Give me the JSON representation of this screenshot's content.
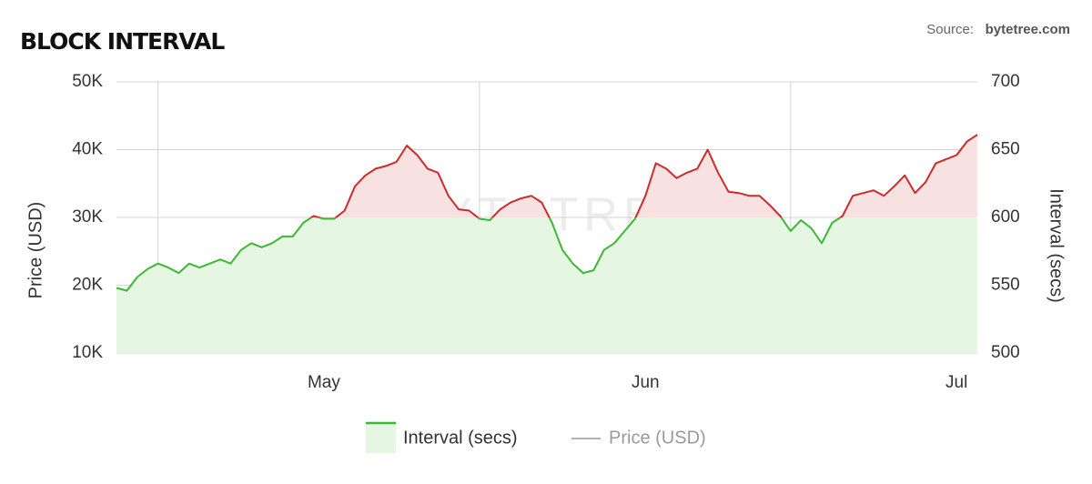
{
  "chart_data": {
    "type": "line",
    "title": "BLOCK INTERVAL",
    "source_label": "Source:",
    "source": "bytetree.com",
    "watermark": "BYTETREE",
    "ylabel": "Price (USD)",
    "y2label": "Interval (secs)",
    "categories": [
      null,
      null,
      null,
      null,
      null,
      null,
      null,
      null,
      null,
      null,
      null,
      null,
      null,
      null,
      null,
      null,
      null,
      null,
      null,
      null,
      "May",
      null,
      null,
      null,
      null,
      null,
      null,
      null,
      null,
      null,
      null,
      null,
      null,
      null,
      null,
      null,
      null,
      null,
      null,
      null,
      null,
      null,
      null,
      null,
      null,
      null,
      null,
      null,
      null,
      null,
      null,
      "Jun",
      null,
      null,
      null,
      null,
      null,
      null,
      null,
      null,
      null,
      null,
      null,
      null,
      null,
      null,
      null,
      null,
      null,
      null,
      null,
      null,
      null,
      null,
      null,
      null,
      null,
      null,
      null,
      null,
      null,
      "Jul",
      null,
      null
    ],
    "xgrid": [
      4,
      35,
      65
    ],
    "ylim": [
      10000,
      50000
    ],
    "yticks": [
      {
        "value": 10000,
        "label": "10K"
      },
      {
        "value": 20000,
        "label": "20K"
      },
      {
        "value": 30000,
        "label": "30K"
      },
      {
        "value": 40000,
        "label": "40K"
      },
      {
        "value": 50000,
        "label": "50K"
      }
    ],
    "y2lim": [
      500,
      700
    ],
    "y2ticks": [
      500,
      550,
      600,
      650,
      700
    ],
    "threshold": 600,
    "grid": true,
    "legend": "bottom",
    "series": [
      {
        "name": "Interval (secs)",
        "axis": "y2",
        "color": "#3cb832",
        "above_color": "#cc2b2b",
        "fill": "#e5f6e2",
        "above_fill": "#f8e1e1",
        "values": [
          548,
          546,
          556,
          562,
          566,
          563,
          559,
          566,
          563,
          566,
          569,
          566,
          576,
          581,
          578,
          581,
          586,
          586,
          596,
          601,
          599,
          599,
          605,
          623,
          631,
          636,
          638,
          641,
          653,
          646,
          636,
          633,
          616,
          606,
          605,
          599,
          598,
          606,
          611,
          614,
          616,
          611,
          596,
          576,
          566,
          559,
          561,
          576,
          581,
          590,
          599,
          616,
          640,
          636,
          629,
          633,
          636,
          650,
          633,
          619,
          618,
          616,
          616,
          609,
          601,
          590,
          598,
          592,
          581,
          596,
          601,
          616,
          618,
          620,
          616,
          623,
          631,
          618,
          626,
          640,
          643,
          646,
          656,
          661
        ]
      },
      {
        "name": "Price (USD)",
        "color": "#9a9a9a",
        "hidden": true
      }
    ]
  }
}
